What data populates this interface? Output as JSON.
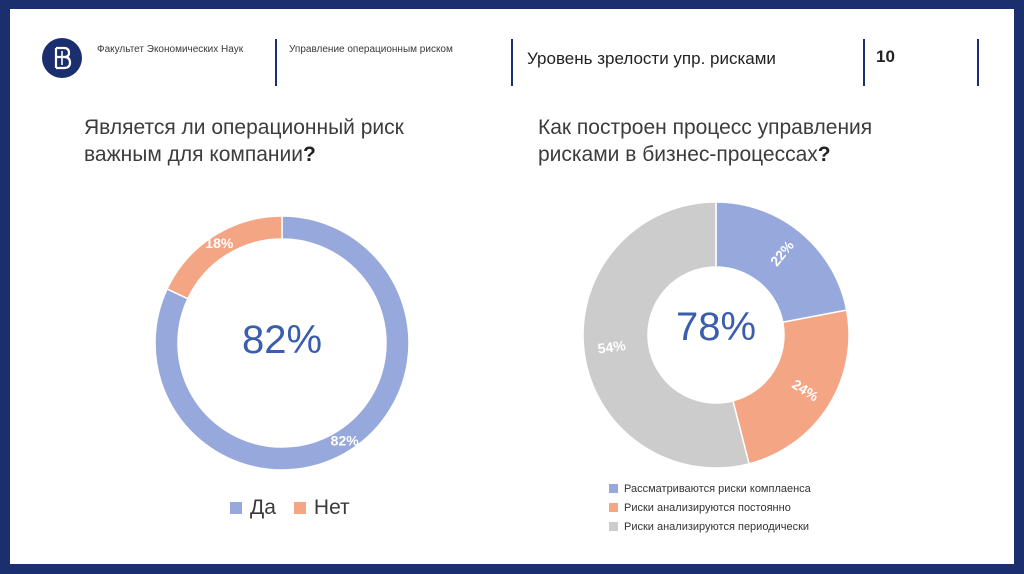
{
  "header": {
    "faculty": "Факультет Экономических Наук",
    "course": "Управление операционным риском",
    "title": "Уровень зрелости упр. рисками",
    "page_number": "10"
  },
  "colors": {
    "blue": "#97a9dc",
    "orange": "#f3a584",
    "gray": "#cccccc",
    "accent": "#3a5dad",
    "frame": "#1b2f6e"
  },
  "chart_data": [
    {
      "type": "pie",
      "title_line1": "Является ли операционный риск",
      "title_line2": "важным для компании",
      "title_mark": "?",
      "center_label": "82%",
      "categories": [
        "Да",
        "Нет"
      ],
      "values": [
        82,
        18
      ],
      "labels": [
        "82%",
        "18%"
      ],
      "legend_position": "bottom"
    },
    {
      "type": "pie",
      "title_line1": "Как построен процесс управления",
      "title_line2": "рисками в бизнес-процессах",
      "title_mark": "?",
      "center_label": "78%",
      "categories": [
        "Рассматриваются риски комплаенса",
        "Риски анализируются постоянно",
        "Риски анализируются периодически"
      ],
      "values": [
        22,
        24,
        54
      ],
      "labels": [
        "22%",
        "24%",
        "54%"
      ],
      "legend_position": "bottom-left"
    }
  ]
}
